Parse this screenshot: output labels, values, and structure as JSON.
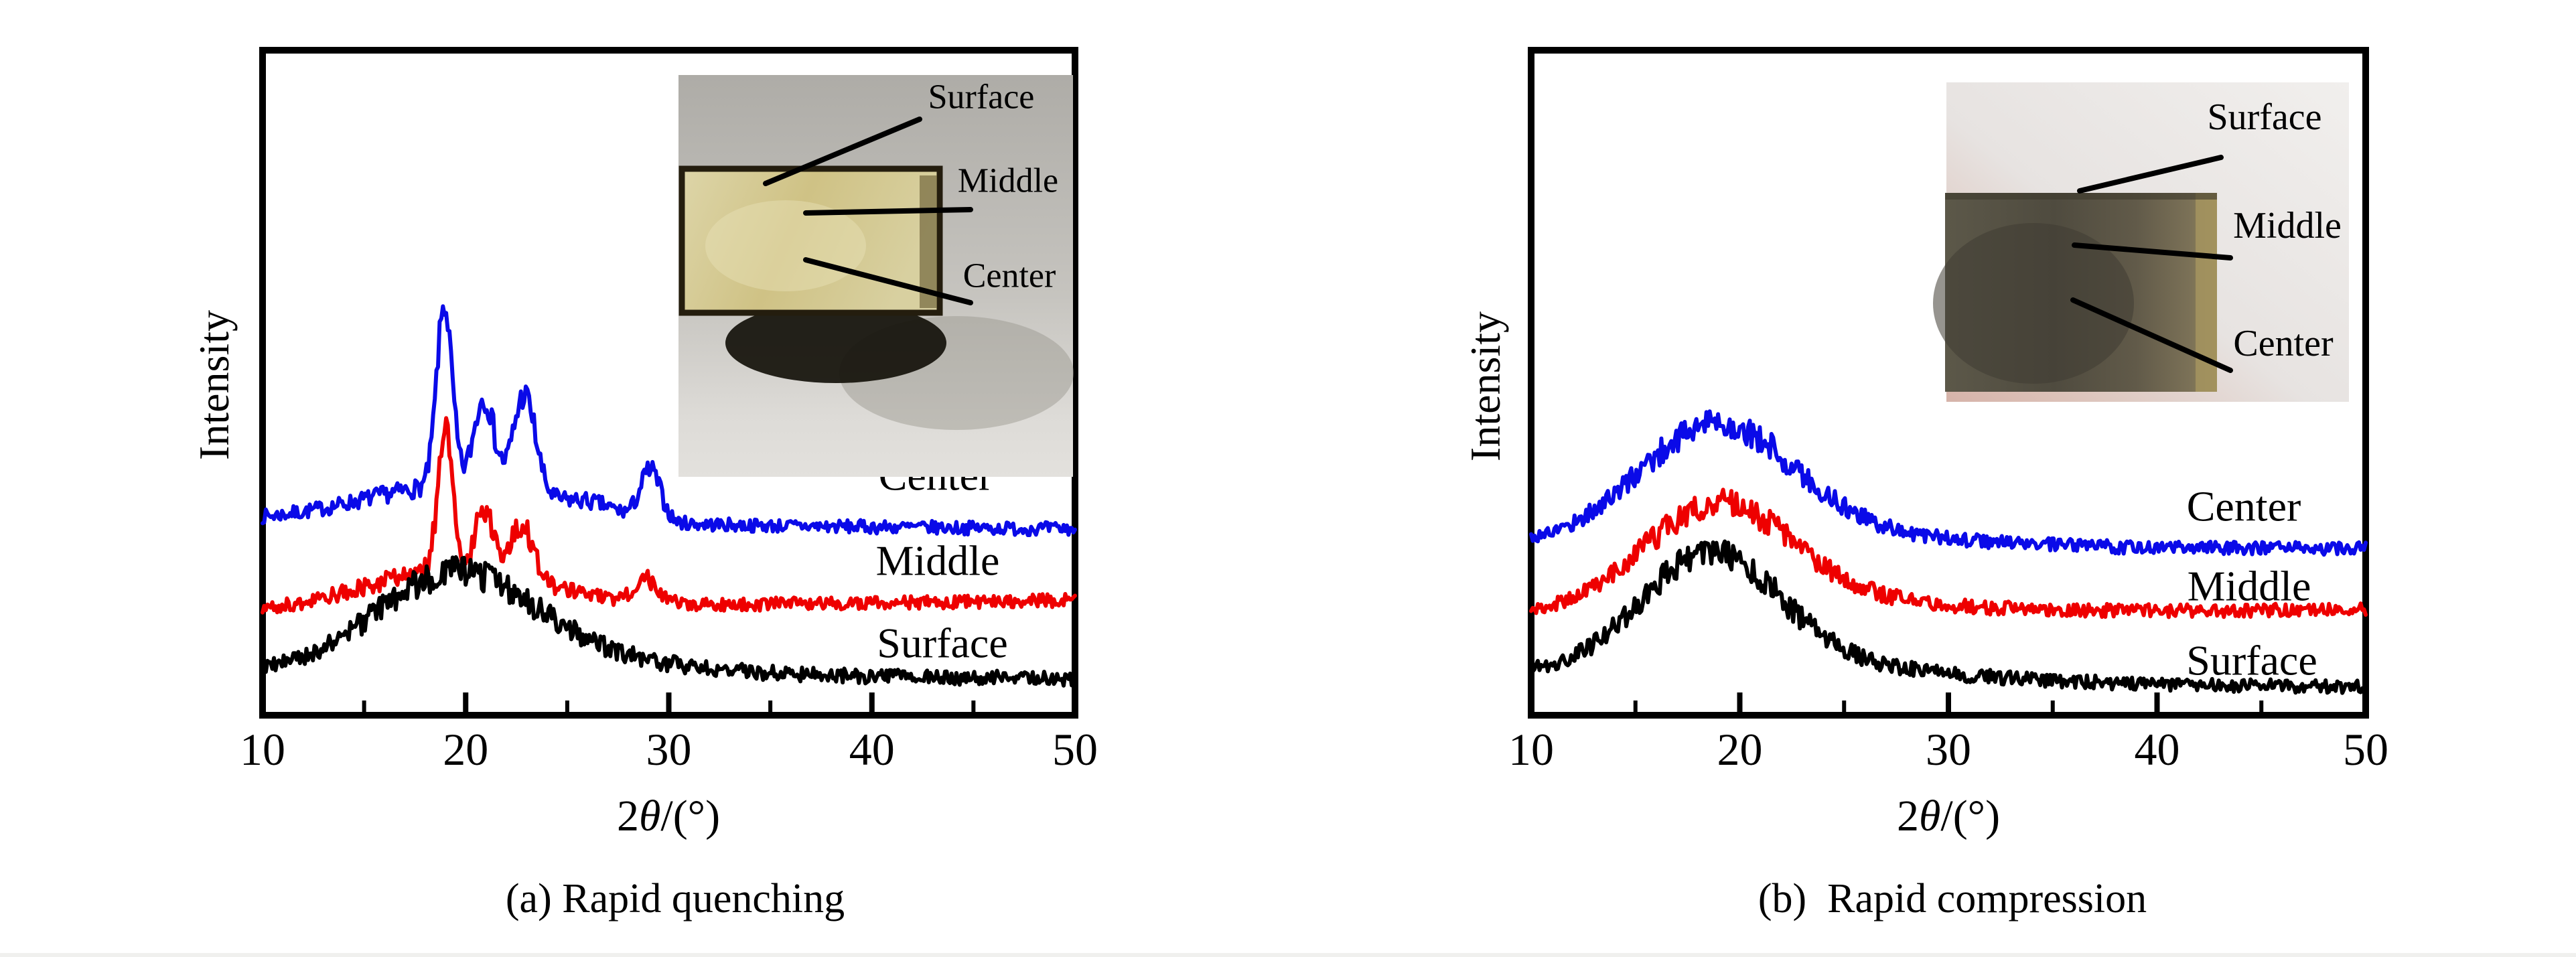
{
  "figure": {
    "background": "#ffffff",
    "description": "Two XRD intensity vs 2-theta plots comparing Surface/Middle/Center of samples, each with an inset photograph of the sample cross-section",
    "panels": [
      {
        "id": "a",
        "caption": "(a) Rapid quenching",
        "ylabel": "Intensity",
        "xlabel_parts": {
          "prefix": "2",
          "theta": "θ",
          "suffix": "/(°)"
        },
        "inset": {
          "type": "photo of quenched sample cross-section (cream colored block, dark charred border, gray background)",
          "labels": [
            {
              "text": "Surface",
              "color": "#000000"
            },
            {
              "text": "Middle",
              "color": "#000000"
            },
            {
              "text": "Center",
              "color": "#ffffff"
            }
          ]
        }
      },
      {
        "id": "b",
        "caption": "(b)  Rapid compression",
        "ylabel": "Intensity",
        "xlabel_parts": {
          "prefix": "2",
          "theta": "θ",
          "suffix": "/(°)"
        },
        "inset": {
          "type": "photo of compressed sample (dark olive-brown block, light gray background with pink tint at bottom)",
          "labels": [
            {
              "text": "Surface",
              "color": "#000000"
            },
            {
              "text": "Middle",
              "color": "#000000"
            },
            {
              "text": "Center",
              "color": "#000000"
            }
          ]
        }
      }
    ]
  },
  "chart_data": [
    {
      "type": "line",
      "panel": "a",
      "title": "(a) Rapid quenching",
      "xlabel": "2θ/(°)",
      "ylabel": "Intensity",
      "xlim": [
        10,
        50
      ],
      "x_ticks": [
        10,
        20,
        30,
        40,
        50
      ],
      "x_minor_ticks": [
        15,
        25,
        35,
        45
      ],
      "y_axis": "arbitrary intensity, no tick marks",
      "grid": false,
      "legend_position": "inline labels to the right of each curve",
      "series": [
        {
          "name": "Center",
          "color": "#0a0ae8",
          "curve": "semicrystalline: sharp Bragg peaks at 2θ≈19.0°, 20.9°, 22.9° and a weak peak at 29.1° on an amorphous halo; top offset trace",
          "render": {
            "seed": 7,
            "noise": 10,
            "baseline": [
              293,
              280
            ],
            "halo": {
              "center": 19.5,
              "sigma": 4.5,
              "amp": 55
            },
            "peaks": [
              {
                "c": 18.95,
                "s": 0.38,
                "a": 272
              },
              {
                "c": 20.9,
                "s": 0.5,
                "a": 136
              },
              {
                "c": 22.9,
                "s": 0.55,
                "a": 151
              },
              {
                "c": 26.2,
                "s": 1.3,
                "a": 15
              },
              {
                "c": 29.1,
                "s": 0.5,
                "a": 75
              }
            ]
          }
        },
        {
          "name": "Middle",
          "color": "#ee0000",
          "curve": "semicrystalline: sharp peaks at 2θ≈19.0°, 20.9°, 22.8° and weak 28.9° on amorphous halo; middle offset trace",
          "render": {
            "seed": 8,
            "noise": 10,
            "baseline": [
              157,
              173
            ],
            "halo": {
              "center": 19.5,
              "sigma": 4.2,
              "amp": 60
            },
            "peaks": [
              {
                "c": 19.0,
                "s": 0.36,
                "a": 217
              },
              {
                "c": 20.9,
                "s": 0.45,
                "a": 91
              },
              {
                "c": 22.8,
                "s": 0.55,
                "a": 81
              },
              {
                "c": 28.9,
                "s": 0.6,
                "a": 35
              }
            ]
          }
        },
        {
          "name": "Surface",
          "color": "#000000",
          "curve": "amorphous: broad halo centered at 2θ≈19.4°, no sharp peaks; bottom offset trace",
          "render": {
            "seed": 9,
            "noise": 11,
            "baseline": [
              65,
              55
            ],
            "halo": {
              "center": 19.4,
              "sigma": 3.8,
              "amp": 135
            },
            "peaks": [
              {
                "c": 24,
                "s": 6,
                "a": 25
              }
            ]
          }
        }
      ]
    },
    {
      "type": "line",
      "panel": "b",
      "title": "(b) Rapid compression",
      "xlabel": "2θ/(°)",
      "ylabel": "Intensity",
      "xlim": [
        10,
        50
      ],
      "x_ticks": [
        10,
        20,
        30,
        40,
        50
      ],
      "x_minor_ticks": [
        15,
        25,
        35,
        45
      ],
      "y_axis": "arbitrary intensity, no tick marks",
      "grid": false,
      "legend_position": "inline labels to the right of each curve",
      "series": [
        {
          "name": "Center",
          "color": "#0a0ae8",
          "curve": "fully amorphous: broad halo centered at 2θ≈18.8°; top offset trace",
          "render": {
            "seed": 17,
            "noise": 10,
            "baseline": [
              258,
              250
            ],
            "halo": {
              "center": 18.8,
              "sigma": 3.6,
              "amp": 166
            },
            "peaks": [
              {
                "c": 23,
                "s": 6,
                "a": 22
              }
            ]
          }
        },
        {
          "name": "Middle",
          "color": "#ee0000",
          "curve": "fully amorphous: broad halo centered at 2θ≈18.9°; middle offset trace",
          "render": {
            "seed": 18,
            "noise": 10,
            "baseline": [
              151,
              159
            ],
            "halo": {
              "center": 18.9,
              "sigma": 3.5,
              "amp": 150
            },
            "peaks": [
              {
                "c": 23,
                "s": 6,
                "a": 20
              }
            ]
          }
        },
        {
          "name": "Surface",
          "color": "#000000",
          "curve": "fully amorphous: broad halo centered at 2θ≈18.5°; bottom offset trace",
          "render": {
            "seed": 19,
            "noise": 10,
            "baseline": [
              61,
              42
            ],
            "halo": {
              "center": 18.5,
              "sigma": 3.3,
              "amp": 172
            },
            "peaks": [
              {
                "c": 23,
                "s": 6,
                "a": 22
              }
            ]
          }
        }
      ]
    }
  ]
}
